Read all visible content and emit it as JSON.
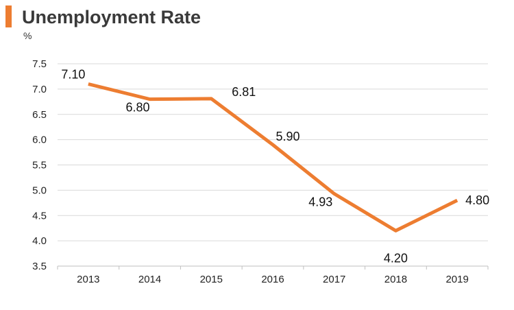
{
  "header": {
    "title": "Unemployment Rate",
    "unit": "%"
  },
  "colors": {
    "accent": "#ED7D31",
    "grid": "#D9D9D9",
    "axis": "#BFBFBF"
  },
  "chart_data": {
    "type": "line",
    "title": "Unemployment Rate",
    "ylabel": "%",
    "xlabel": "",
    "categories": [
      "2013",
      "2014",
      "2015",
      "2016",
      "2017",
      "2018",
      "2019"
    ],
    "series": [
      {
        "values": [
          7.1,
          6.8,
          6.81,
          5.9,
          4.93,
          4.2,
          4.8
        ],
        "labels": [
          "7.10",
          "6.80",
          "6.81",
          "5.90",
          "4.93",
          "4.20",
          "4.80"
        ],
        "color": "#ED7D31"
      }
    ],
    "ylim": [
      3.5,
      7.5
    ],
    "yticks": [
      "3.5",
      "4.0",
      "4.5",
      "5.0",
      "5.5",
      "6.0",
      "6.5",
      "7.0",
      "7.5"
    ],
    "grid": true,
    "legend": "none"
  }
}
